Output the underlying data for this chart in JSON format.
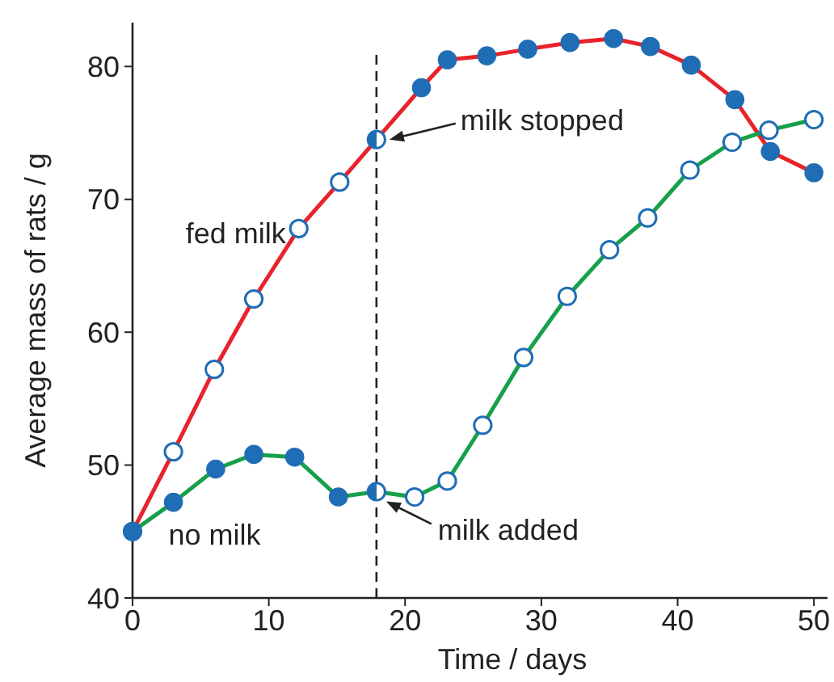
{
  "chart_data": {
    "type": "line",
    "xlabel": "Time / days",
    "ylabel": "Average mass of rats / g",
    "xlim": [
      0,
      51
    ],
    "ylim": [
      40,
      83.3
    ],
    "xticks": [
      0,
      10,
      20,
      30,
      40,
      50
    ],
    "yticks": [
      40,
      50,
      60,
      70,
      80
    ],
    "grid": false,
    "marker": "circle",
    "line_style": "solid",
    "series": [
      {
        "name": "fed milk",
        "color": "#e8232b",
        "x": [
          0,
          3,
          6,
          8.9,
          12.2,
          15.2,
          17.9,
          21.2,
          23.1,
          26,
          29,
          32.1,
          35.3,
          38,
          41,
          44.2,
          46.8,
          50
        ],
        "values": [
          45,
          51,
          57.2,
          62.5,
          67.8,
          71.3,
          74.5,
          78.4,
          80.5,
          80.8,
          81.3,
          81.8,
          82.1,
          81.5,
          80.1,
          77.5,
          73.6,
          72
        ]
      },
      {
        "name": "no milk",
        "color": "#17a04a",
        "x": [
          0,
          3,
          6.1,
          8.9,
          11.9,
          15.1,
          17.9,
          20.7,
          23.1,
          25.7,
          28.7,
          31.9,
          35,
          37.8,
          40.9,
          44,
          46.7,
          50
        ],
        "values": [
          45,
          47.2,
          49.7,
          50.8,
          50.6,
          47.6,
          48,
          47.6,
          48.8,
          53,
          58.1,
          62.7,
          66.2,
          68.6,
          72.2,
          74.3,
          75.2,
          76
        ]
      }
    ],
    "ref_lines": [
      {
        "axis": "x",
        "value": 17.9,
        "color": "#222222",
        "line_style": "dashed"
      }
    ],
    "annotations": [
      {
        "text": "milk stopped",
        "x": 17.9,
        "y": 74.5
      },
      {
        "text": "milk added",
        "x": 17.9,
        "y": 48
      }
    ]
  }
}
